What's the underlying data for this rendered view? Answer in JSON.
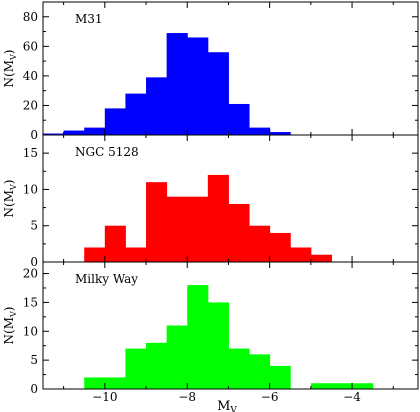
{
  "chart_data": {
    "type": "bar",
    "xlabel": "M",
    "xlabel_sub": "V",
    "ylabel": "N(M",
    "ylabel_sub": "V",
    "ylabel_close": ")",
    "xlim": [
      -11.5,
      -2.4
    ],
    "xticks": [
      -10,
      -8,
      -6,
      -4
    ],
    "xticklabels": [
      "−10",
      "−8",
      "−6",
      "−4"
    ],
    "bin_width": 0.5,
    "grid": false,
    "legend": "none",
    "panels": [
      {
        "name": "M31",
        "color": "#0000ff",
        "ylim": [
          0,
          90
        ],
        "yticks": [
          0,
          20,
          40,
          60,
          80
        ],
        "yticklabels": [
          "0",
          "20",
          "40",
          "60",
          "80"
        ],
        "bins": [
          {
            "x": -11.25,
            "value": 1
          },
          {
            "x": -10.75,
            "value": 3
          },
          {
            "x": -10.25,
            "value": 5
          },
          {
            "x": -9.75,
            "value": 18
          },
          {
            "x": -9.25,
            "value": 28
          },
          {
            "x": -8.75,
            "value": 39
          },
          {
            "x": -8.25,
            "value": 69
          },
          {
            "x": -7.75,
            "value": 66
          },
          {
            "x": -7.25,
            "value": 56
          },
          {
            "x": -6.75,
            "value": 21
          },
          {
            "x": -6.25,
            "value": 5
          },
          {
            "x": -5.75,
            "value": 2
          }
        ]
      },
      {
        "name": "NGC 5128",
        "color": "#ff0000",
        "ylim": [
          0,
          17.5
        ],
        "yticks": [
          0,
          5,
          10,
          15
        ],
        "yticklabels": [
          "0",
          "5",
          "10",
          "15"
        ],
        "bins": [
          {
            "x": -10.25,
            "value": 2
          },
          {
            "x": -9.75,
            "value": 5
          },
          {
            "x": -9.25,
            "value": 2
          },
          {
            "x": -8.75,
            "value": 11
          },
          {
            "x": -8.25,
            "value": 9
          },
          {
            "x": -7.75,
            "value": 9
          },
          {
            "x": -7.25,
            "value": 12
          },
          {
            "x": -6.75,
            "value": 8
          },
          {
            "x": -6.25,
            "value": 5
          },
          {
            "x": -5.75,
            "value": 4
          },
          {
            "x": -5.25,
            "value": 2
          },
          {
            "x": -4.75,
            "value": 1
          }
        ]
      },
      {
        "name": "Milky Way",
        "color": "#00ff00",
        "ylim": [
          0,
          22
        ],
        "yticks": [
          0,
          5,
          10,
          15,
          20
        ],
        "yticklabels": [
          "0",
          "5",
          "10",
          "15",
          "20"
        ],
        "bins": [
          {
            "x": -10.25,
            "value": 2
          },
          {
            "x": -9.75,
            "value": 2
          },
          {
            "x": -9.25,
            "value": 7
          },
          {
            "x": -8.75,
            "value": 8
          },
          {
            "x": -8.25,
            "value": 11
          },
          {
            "x": -7.75,
            "value": 18
          },
          {
            "x": -7.25,
            "value": 15
          },
          {
            "x": -6.75,
            "value": 7
          },
          {
            "x": -6.25,
            "value": 6
          },
          {
            "x": -5.75,
            "value": 4
          },
          {
            "x": -4.75,
            "value": 1
          },
          {
            "x": -4.25,
            "value": 1
          },
          {
            "x": -3.75,
            "value": 1
          }
        ]
      }
    ]
  }
}
